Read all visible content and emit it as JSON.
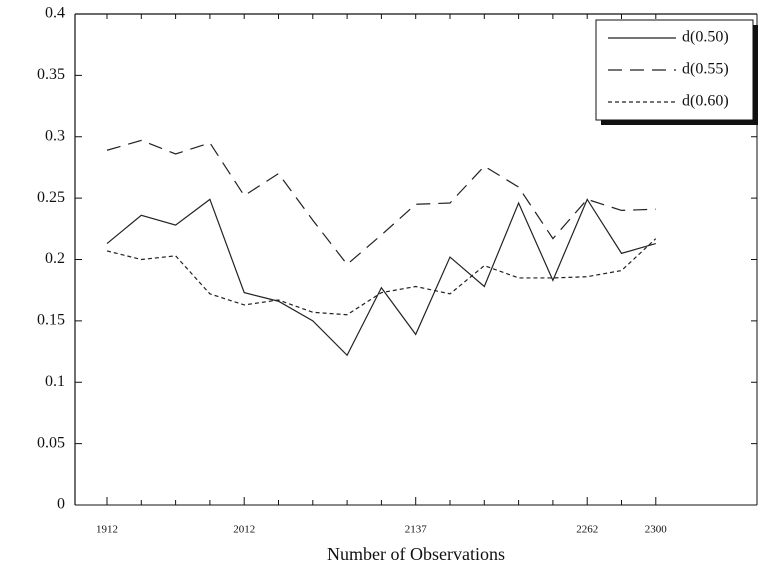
{
  "chart_data": {
    "type": "line",
    "x_label": "Number of Observations",
    "categories": [
      "1912",
      null,
      null,
      null,
      "2012",
      null,
      null,
      null,
      null,
      "2137",
      null,
      null,
      null,
      null,
      "2262",
      null,
      "2300"
    ],
    "series": [
      {
        "name": "d(0.50)",
        "color": "#222222",
        "style": "solid",
        "values": [
          0.213,
          0.236,
          0.228,
          0.249,
          0.173,
          0.166,
          0.15,
          0.122,
          0.177,
          0.139,
          0.202,
          0.178,
          0.246,
          0.183,
          0.249,
          0.205,
          0.213
        ]
      },
      {
        "name": "d(0.55)",
        "color": "#222222",
        "style": "dashed",
        "values": [
          0.289,
          0.297,
          0.286,
          0.295,
          0.252,
          0.27,
          0.232,
          0.196,
          0.22,
          0.245,
          0.246,
          0.276,
          0.259,
          0.217,
          0.249,
          0.24,
          0.241
        ]
      },
      {
        "name": "d(0.60)",
        "color": "#222222",
        "style": "dotted",
        "values": [
          0.207,
          0.2,
          0.203,
          0.172,
          0.163,
          0.167,
          0.157,
          0.155,
          0.173,
          0.178,
          0.172,
          0.195,
          0.185,
          0.185,
          0.186,
          0.191,
          0.217
        ]
      }
    ],
    "ylim": [
      0,
      0.4
    ],
    "yticks": [
      0,
      0.05,
      0.1,
      0.15,
      0.2,
      0.25,
      0.3,
      0.35,
      0.4
    ],
    "legend": "upper right"
  }
}
